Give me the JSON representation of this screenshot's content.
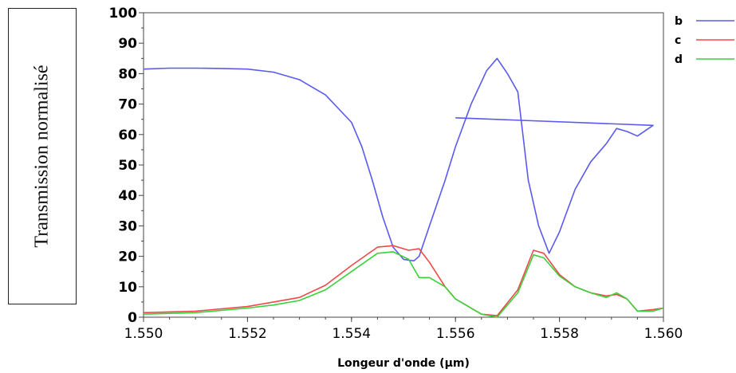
{
  "chart_data": {
    "type": "line",
    "title": "",
    "ylabel": "Transmission normalisé",
    "xlabel": "Longeur d'onde (µm)",
    "xlim": [
      1.55,
      1.56
    ],
    "ylim": [
      0,
      100
    ],
    "x_ticks": [
      "1.550",
      "1.552",
      "1.554",
      "1.556",
      "1.558",
      "1.560"
    ],
    "y_ticks": [
      "0",
      "10",
      "20",
      "30",
      "40",
      "50",
      "60",
      "70",
      "80",
      "90",
      "100"
    ],
    "legend_position": "right",
    "grid": false,
    "series": [
      {
        "name": "b",
        "color": "#5a5af0",
        "x": [
          1.55,
          1.5505,
          1.551,
          1.5515,
          1.552,
          1.5525,
          1.553,
          1.5535,
          1.554,
          1.5542,
          1.5544,
          1.5546,
          1.5548,
          1.555,
          1.5552,
          1.5553,
          1.5555,
          1.5558,
          1.556,
          1.5563,
          1.5566,
          1.5568,
          1.557,
          1.5572,
          1.5574,
          1.5576,
          1.5578,
          1.558,
          1.5583,
          1.5586,
          1.5589,
          1.5591,
          1.5593,
          1.5595,
          1.5598,
          1.556
        ],
        "y": [
          81.5,
          81.8,
          81.8,
          81.7,
          81.5,
          80.5,
          78,
          73,
          64,
          56,
          45,
          33,
          23,
          19,
          18.5,
          20,
          30,
          45,
          56,
          70,
          81,
          85,
          80,
          74,
          45,
          30,
          21,
          28,
          42,
          51,
          57,
          62,
          61,
          59.5,
          63,
          65.5
        ]
      },
      {
        "name": "c",
        "color": "#f04848",
        "x": [
          1.55,
          1.551,
          1.552,
          1.5525,
          1.553,
          1.5535,
          1.554,
          1.5545,
          1.5548,
          1.5551,
          1.5553,
          1.5555,
          1.5558,
          1.556,
          1.5565,
          1.5568,
          1.5572,
          1.5575,
          1.5577,
          1.558,
          1.5583,
          1.5586,
          1.5589,
          1.5591,
          1.5593,
          1.5595,
          1.5598,
          1.56
        ],
        "y": [
          1.5,
          2,
          3.5,
          5,
          6.5,
          10.5,
          17,
          23,
          23.5,
          22,
          22.5,
          18,
          10,
          6,
          1,
          0.5,
          9,
          22,
          21,
          14,
          10,
          8,
          7,
          7.5,
          6,
          2,
          2.5,
          3
        ]
      },
      {
        "name": "d",
        "color": "#3ad13a",
        "x": [
          1.55,
          1.551,
          1.552,
          1.5525,
          1.553,
          1.5535,
          1.554,
          1.5545,
          1.5548,
          1.5551,
          1.5553,
          1.5555,
          1.5558,
          1.556,
          1.5565,
          1.5568,
          1.5572,
          1.5575,
          1.5577,
          1.558,
          1.5583,
          1.5586,
          1.5589,
          1.5591,
          1.5593,
          1.5595,
          1.5598,
          1.56
        ],
        "y": [
          1,
          1.5,
          3,
          4,
          5.5,
          9,
          15,
          21,
          21.5,
          19,
          13,
          13,
          10,
          6,
          1,
          0,
          8,
          20.5,
          19.5,
          13.5,
          10,
          8,
          6.5,
          8,
          6,
          2,
          2,
          3
        ]
      }
    ]
  }
}
